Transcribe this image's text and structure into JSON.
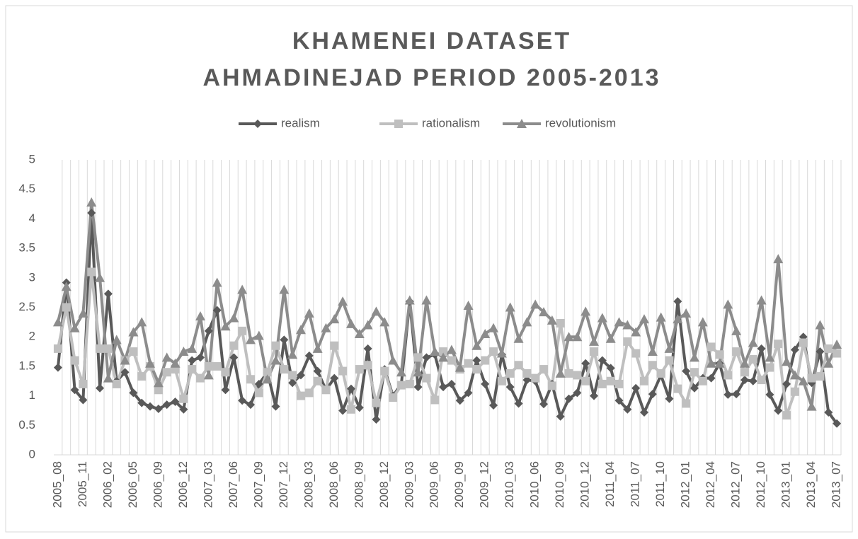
{
  "chart_data": {
    "type": "line",
    "title": [
      "KHAMENEI DATASET",
      "AHMADINEJAD PERIOD 2005-2013"
    ],
    "categories": [
      "2005_08",
      null,
      null,
      "2005_11",
      null,
      null,
      "2006_02",
      null,
      null,
      "2006_05",
      null,
      null,
      "2006_09",
      null,
      null,
      "2006_12",
      null,
      null,
      "2007_03",
      null,
      null,
      "2007_06",
      null,
      null,
      "2007_09",
      null,
      null,
      "2007_12",
      null,
      null,
      "2008_03",
      null,
      null,
      "2008_06",
      null,
      null,
      "2008_09",
      null,
      null,
      "2008_12",
      null,
      null,
      "2009_03",
      null,
      null,
      "2009_06",
      null,
      null,
      "2009_09",
      null,
      null,
      "2009_12",
      null,
      null,
      "2010_03",
      null,
      null,
      "2010_06",
      null,
      null,
      "2010_09",
      null,
      null,
      "2010_12",
      null,
      null,
      "2011_04",
      null,
      null,
      "2011_07",
      null,
      null,
      "2011_10",
      null,
      null,
      "2012_01",
      null,
      null,
      "2012_04",
      null,
      null,
      "2012_07",
      null,
      null,
      "2012_10",
      null,
      null,
      "2013_01",
      null,
      null,
      "2013_04",
      null,
      null,
      "2013_07"
    ],
    "series": [
      {
        "name": "realism",
        "color": "#595959",
        "marker": "diamond",
        "values": [
          1.48,
          2.92,
          1.1,
          0.93,
          4.1,
          1.13,
          2.73,
          1.25,
          1.4,
          1.05,
          0.88,
          0.82,
          0.78,
          0.85,
          0.9,
          0.77,
          1.6,
          1.65,
          2.1,
          2.45,
          1.1,
          1.65,
          0.92,
          0.85,
          1.2,
          1.4,
          0.82,
          1.95,
          1.22,
          1.35,
          1.68,
          1.42,
          1.1,
          1.3,
          0.75,
          1.12,
          0.8,
          1.8,
          0.6,
          1.45,
          1.0,
          1.2,
          2.6,
          1.15,
          1.65,
          1.7,
          1.15,
          1.2,
          0.92,
          1.05,
          1.6,
          1.2,
          0.84,
          1.7,
          1.15,
          0.87,
          1.27,
          1.25,
          0.86,
          1.2,
          0.65,
          0.95,
          1.05,
          1.55,
          1.0,
          1.6,
          1.47,
          0.92,
          0.77,
          1.13,
          0.72,
          1.03,
          1.35,
          0.95,
          2.6,
          1.42,
          1.13,
          1.3,
          1.3,
          1.55,
          1.02,
          1.03,
          1.27,
          1.25,
          1.8,
          1.02,
          0.75,
          1.2,
          1.78,
          2.0,
          1.22,
          1.75,
          0.72,
          0.53
        ]
      },
      {
        "name": "rationalism",
        "color": "#bfbfbf",
        "marker": "square",
        "values": [
          1.8,
          2.5,
          1.6,
          1.2,
          3.1,
          1.8,
          1.8,
          1.2,
          1.6,
          1.75,
          1.33,
          1.5,
          1.1,
          1.4,
          1.45,
          0.95,
          1.45,
          1.3,
          1.5,
          1.5,
          1.4,
          1.85,
          2.1,
          1.28,
          1.05,
          1.4,
          1.85,
          1.45,
          1.35,
          1.0,
          1.05,
          1.25,
          1.1,
          1.85,
          1.42,
          0.77,
          1.45,
          1.52,
          0.88,
          1.42,
          0.97,
          1.18,
          1.2,
          1.65,
          1.3,
          0.93,
          1.75,
          1.6,
          1.45,
          1.55,
          1.45,
          1.6,
          1.75,
          1.25,
          1.38,
          1.52,
          1.38,
          1.3,
          1.45,
          1.17,
          2.23,
          1.38,
          1.35,
          1.25,
          1.75,
          1.2,
          1.25,
          1.2,
          1.92,
          1.72,
          1.25,
          1.52,
          1.38,
          1.6,
          1.12,
          0.87,
          1.4,
          1.25,
          1.83,
          1.7,
          1.35,
          1.75,
          1.4,
          1.62,
          1.27,
          1.48,
          1.88,
          0.67,
          1.07,
          1.9,
          1.3,
          1.33,
          1.8,
          1.72
        ]
      },
      {
        "name": "revolutionism",
        "color": "#8c8c8c",
        "marker": "triangle",
        "values": [
          2.25,
          2.85,
          2.15,
          2.4,
          4.28,
          3.0,
          1.3,
          1.95,
          1.6,
          2.08,
          2.25,
          1.55,
          1.22,
          1.65,
          1.55,
          1.75,
          1.8,
          2.35,
          1.35,
          2.92,
          2.18,
          2.32,
          2.8,
          1.95,
          2.02,
          1.28,
          1.6,
          2.8,
          1.7,
          2.12,
          2.4,
          1.8,
          2.15,
          2.3,
          2.6,
          2.22,
          2.05,
          2.2,
          2.43,
          2.25,
          1.6,
          1.4,
          2.62,
          1.4,
          2.62,
          1.75,
          1.65,
          1.78,
          1.48,
          2.53,
          1.85,
          2.05,
          2.15,
          1.72,
          2.5,
          1.97,
          2.25,
          2.55,
          2.42,
          2.28,
          1.38,
          2.0,
          2.0,
          2.43,
          1.92,
          2.32,
          1.97,
          2.25,
          2.2,
          2.08,
          2.3,
          1.75,
          2.33,
          1.8,
          2.3,
          2.4,
          1.65,
          2.25,
          1.55,
          1.55,
          2.55,
          2.1,
          1.55,
          1.9,
          2.62,
          1.65,
          3.32,
          1.58,
          1.35,
          1.25,
          0.82,
          2.2,
          1.55,
          1.87
        ]
      }
    ],
    "ylim": [
      0,
      5
    ],
    "yticks": [
      0,
      0.5,
      1,
      1.5,
      2,
      2.5,
      3,
      3.5,
      4,
      4.5,
      5
    ],
    "grid": "x",
    "legend": "top"
  }
}
